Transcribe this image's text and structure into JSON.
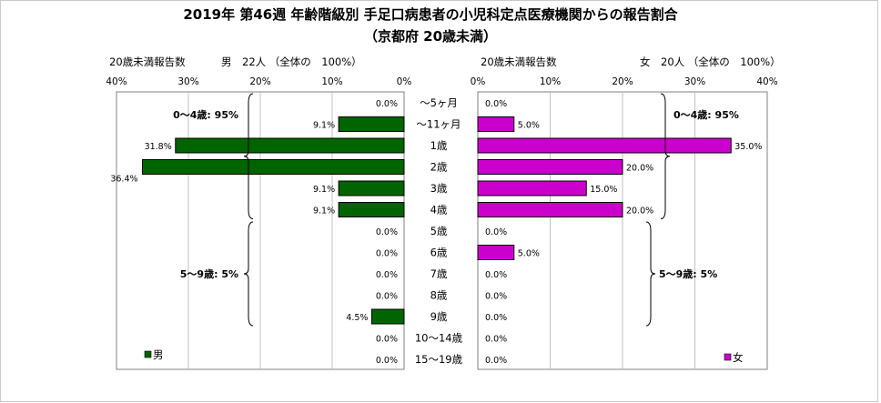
{
  "chart_data": {
    "type": "bar",
    "title_line1": "2019年 第46週 年齢階級別 手足口病患者の小児科定点医療機関からの報告割合",
    "title_line2": "（京都府 20歳未満）",
    "categories": [
      "～5ヶ月",
      "～11ヶ月",
      "1歳",
      "2歳",
      "3歳",
      "4歳",
      "5歳",
      "6歳",
      "7歳",
      "8歳",
      "9歳",
      "10～14歳",
      "15～19歳"
    ],
    "left": {
      "header_label": "20歳未満報告数",
      "header_value": "男　22人 （全体の　100%）",
      "series": [
        {
          "name": "男",
          "values": [
            0.0,
            9.1,
            31.8,
            36.4,
            9.1,
            9.1,
            0.0,
            0.0,
            0.0,
            0.0,
            4.5,
            0.0,
            0.0
          ]
        }
      ],
      "data_labels": [
        "0.0%",
        "9.1%",
        "31.8%",
        "36.4%",
        "9.1%",
        "9.1%",
        "0.0%",
        "0.0%",
        "0.0%",
        "0.0%",
        "4.5%",
        "0.0%",
        "0.0%"
      ],
      "xlim": [
        0,
        40
      ],
      "ticks": [
        "40%",
        "30%",
        "20%",
        "10%",
        "0%"
      ],
      "color": "#006400",
      "legend": "男",
      "groups": [
        {
          "label": "0～4歳: 95%",
          "from": 0,
          "to": 5
        },
        {
          "label": "5～9歳: 5%",
          "from": 6,
          "to": 10
        }
      ]
    },
    "right": {
      "header_label": "20歳未満報告数",
      "header_value": "女　20人 （全体の　100%）",
      "series": [
        {
          "name": "女",
          "values": [
            0.0,
            5.0,
            35.0,
            20.0,
            15.0,
            20.0,
            0.0,
            5.0,
            0.0,
            0.0,
            0.0,
            0.0,
            0.0
          ]
        }
      ],
      "data_labels": [
        "0.0%",
        "5.0%",
        "35.0%",
        "20.0%",
        "15.0%",
        "20.0%",
        "0.0%",
        "5.0%",
        "0.0%",
        "0.0%",
        "0.0%",
        "0.0%",
        "0.0%"
      ],
      "xlim": [
        0,
        40
      ],
      "ticks": [
        "0%",
        "10%",
        "20%",
        "30%",
        "40%"
      ],
      "color": "#CC00CC",
      "legend": "女",
      "groups": [
        {
          "label": "0～4歳: 95%",
          "from": 0,
          "to": 5
        },
        {
          "label": "5～9歳: 5%",
          "from": 6,
          "to": 10
        }
      ]
    },
    "grid": true
  }
}
